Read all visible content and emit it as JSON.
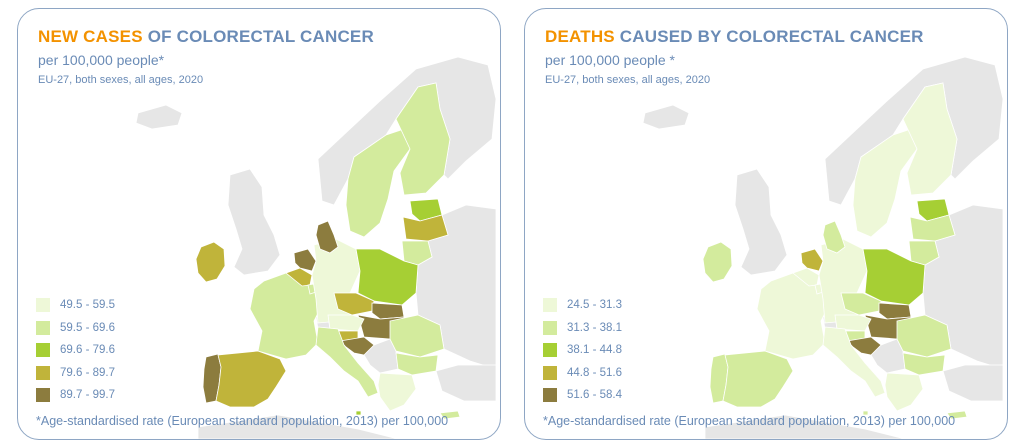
{
  "colors": {
    "c1": "#eef8d8",
    "c2": "#d3eb9d",
    "c3": "#a6cf34",
    "c4": "#c0b43a",
    "c5": "#8c7c3e",
    "nonEU": "#e6e6e6",
    "highlight": "#f39200",
    "text": "#6a8bb6"
  },
  "panels": [
    {
      "title_highlight": "NEW CASES",
      "title_rest": " OF COLORECTAL CANCER",
      "subtitle": "per 100,000 people*",
      "subtitle2": "EU-27, both sexes, all ages, 2020",
      "legend": [
        "49.5 - 59.5",
        "59.5 - 69.6",
        "69.6 - 79.6",
        "79.6 - 89.7",
        "89.7 - 99.7"
      ],
      "footnote": "*Age-standardised rate (European standard population, 2013) per 100,000",
      "regions": {
        "Ireland": 4,
        "Portugal": 5,
        "Spain": 4,
        "France": 2,
        "Belgium": 4,
        "Netherlands": 5,
        "Luxembourg": 2,
        "Germany": 1,
        "Denmark": 5,
        "Sweden": 2,
        "Finland": 2,
        "Estonia": 3,
        "Latvia": 4,
        "Lithuania": 2,
        "Poland": 3,
        "Czechia": 4,
        "Slovakia": 5,
        "Hungary": 5,
        "Austria": 1,
        "Slovenia": 4,
        "Croatia": 5,
        "Italy": 2,
        "Romania": 2,
        "Bulgaria": 2,
        "Greece": 1,
        "Malta": 3,
        "Cyprus": 2
      }
    },
    {
      "title_highlight": "DEATHS",
      "title_rest": " CAUSED BY COLORECTAL CANCER",
      "subtitle": "per 100,000 people *",
      "subtitle2": "EU-27, both sexes, all ages, 2020",
      "legend": [
        "24.5 - 31.3",
        "31.3 - 38.1",
        "38.1 - 44.8",
        "44.8 - 51.6",
        "51.6 - 58.4"
      ],
      "footnote": "*Age-standardised rate (European standard population, 2013) per 100,000",
      "regions": {
        "Ireland": 2,
        "Portugal": 2,
        "Spain": 2,
        "France": 1,
        "Belgium": 1,
        "Netherlands": 4,
        "Luxembourg": 1,
        "Germany": 1,
        "Denmark": 2,
        "Sweden": 1,
        "Finland": 1,
        "Estonia": 3,
        "Latvia": 2,
        "Lithuania": 2,
        "Poland": 3,
        "Czechia": 2,
        "Slovakia": 5,
        "Hungary": 5,
        "Austria": 1,
        "Slovenia": 2,
        "Croatia": 5,
        "Italy": 1,
        "Romania": 2,
        "Bulgaria": 2,
        "Greece": 1,
        "Malta": 2,
        "Cyprus": 2
      }
    }
  ]
}
